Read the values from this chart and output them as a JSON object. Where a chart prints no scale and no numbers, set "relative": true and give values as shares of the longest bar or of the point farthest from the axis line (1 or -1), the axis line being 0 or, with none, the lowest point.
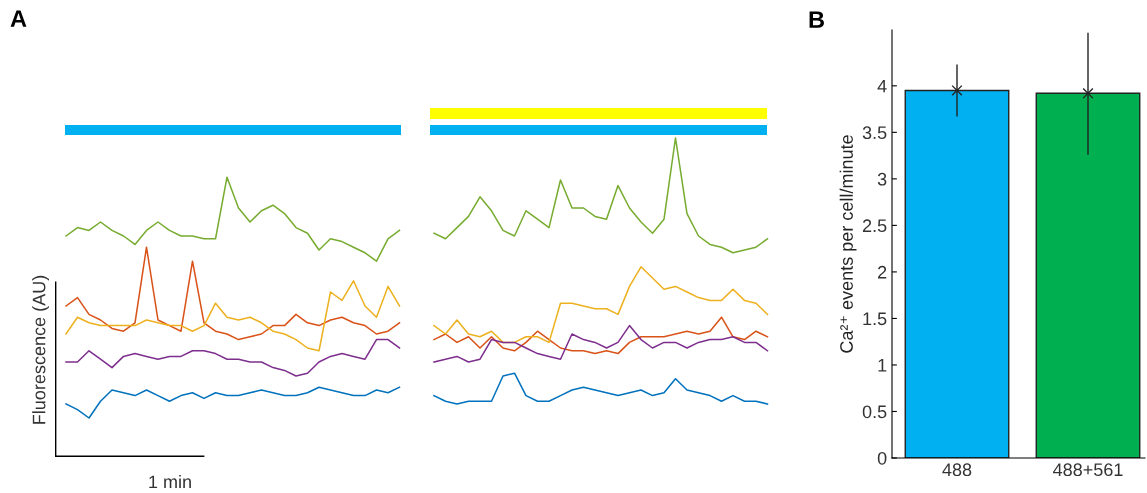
{
  "chart_data": [
    {
      "type": "line",
      "title": "A",
      "xlabel": "1 min",
      "ylabel": "Fluorescence (AU)",
      "relative": true,
      "grid": false,
      "legend": false,
      "line_style": "solid",
      "marker": "none",
      "categories": [
        null,
        null,
        null,
        null,
        null,
        null,
        null,
        null,
        null,
        null,
        null,
        null,
        null,
        null,
        null,
        null,
        null,
        null,
        null,
        null,
        null,
        null,
        null,
        null,
        null,
        null,
        null,
        null,
        null,
        null,
        null,
        null,
        null,
        null,
        null,
        null,
        null,
        null,
        null,
        null,
        null,
        null,
        null,
        null,
        null,
        null,
        null,
        null,
        null,
        null,
        null,
        null,
        null,
        null,
        null,
        null,
        null,
        null,
        null,
        null,
        null,
        null
      ],
      "series": [
        {
          "color": "#77ac30",
          "values": [
            0.65,
            0.68,
            0.67,
            0.7,
            0.67,
            0.65,
            0.62,
            0.67,
            0.7,
            0.67,
            0.65,
            0.65,
            0.64,
            0.64,
            0.86,
            0.75,
            0.7,
            0.74,
            0.76,
            0.73,
            0.68,
            0.66,
            0.6,
            0.64,
            0.63,
            0.61,
            0.59,
            0.56,
            0.64,
            0.67,
            null,
            null,
            null,
            null,
            null,
            null,
            null,
            null,
            null,
            null,
            null,
            null,
            null,
            null,
            null,
            null,
            null,
            null,
            null,
            null,
            null,
            null,
            null,
            null,
            null,
            null,
            null,
            null,
            null,
            null,
            null,
            null
          ]
        },
        {
          "color": "#d95319",
          "values": [
            0.4,
            0.43,
            0.37,
            0.35,
            0.32,
            0.31,
            0.34,
            0.61,
            0.35,
            0.33,
            0.31,
            0.56,
            0.34,
            0.31,
            0.3,
            0.28,
            0.29,
            0.3,
            0.33,
            0.33,
            0.37,
            0.34,
            0.33,
            0.35,
            0.36,
            0.34,
            0.33,
            0.3,
            0.31,
            0.34,
            null,
            null,
            null,
            null,
            null,
            null,
            null,
            null,
            null,
            null,
            null,
            null,
            null,
            null,
            null,
            null,
            null,
            null,
            null,
            null,
            null,
            null,
            null,
            null,
            null,
            null,
            null,
            null,
            null,
            null,
            null,
            null
          ]
        },
        {
          "color": "#edb120",
          "values": [
            0.3,
            0.36,
            0.34,
            0.33,
            0.33,
            0.33,
            0.33,
            0.35,
            0.34,
            0.33,
            0.33,
            0.31,
            0.33,
            0.41,
            0.36,
            0.35,
            0.36,
            0.34,
            0.31,
            0.3,
            0.28,
            0.25,
            0.24,
            0.45,
            0.42,
            0.49,
            0.4,
            0.36,
            0.47,
            0.4,
            null,
            null,
            null,
            null,
            null,
            null,
            null,
            null,
            null,
            null,
            null,
            null,
            null,
            null,
            null,
            null,
            null,
            null,
            null,
            null,
            null,
            null,
            null,
            null,
            null,
            null,
            null,
            null,
            null,
            null,
            null,
            null
          ]
        },
        {
          "color": "#7e2f8e",
          "values": [
            0.2,
            0.2,
            0.24,
            0.21,
            0.18,
            0.22,
            0.23,
            0.22,
            0.21,
            0.22,
            0.22,
            0.24,
            0.24,
            0.23,
            0.21,
            0.21,
            0.2,
            0.2,
            0.18,
            0.17,
            0.15,
            0.16,
            0.2,
            0.22,
            0.23,
            0.22,
            0.21,
            0.28,
            0.28,
            0.25,
            null,
            null,
            null,
            null,
            null,
            null,
            null,
            null,
            null,
            null,
            null,
            null,
            null,
            null,
            null,
            null,
            null,
            null,
            null,
            null,
            null,
            null,
            null,
            null,
            null,
            null,
            null,
            null,
            null,
            null,
            null,
            null
          ]
        },
        {
          "color": "#0072bd",
          "values": [
            0.05,
            0.03,
            0.0,
            0.06,
            0.1,
            0.09,
            0.08,
            0.1,
            0.08,
            0.06,
            0.08,
            0.09,
            0.07,
            0.09,
            0.08,
            0.08,
            0.09,
            0.1,
            0.09,
            0.08,
            0.08,
            0.09,
            0.11,
            0.1,
            0.09,
            0.08,
            0.08,
            0.1,
            0.09,
            0.11,
            null,
            null,
            null,
            null,
            null,
            null,
            null,
            null,
            null,
            null,
            null,
            null,
            null,
            null,
            null,
            null,
            null,
            null,
            null,
            null,
            null,
            null,
            null,
            null,
            null,
            null,
            null,
            null,
            null,
            null,
            null,
            null
          ]
        },
        {
          "color": "#77ac30",
          "values": [
            null,
            null,
            null,
            null,
            null,
            null,
            null,
            null,
            null,
            null,
            null,
            null,
            null,
            null,
            null,
            null,
            null,
            null,
            null,
            null,
            null,
            null,
            null,
            null,
            null,
            null,
            null,
            null,
            null,
            null,
            null,
            null,
            0.66,
            0.64,
            0.68,
            0.72,
            0.79,
            0.74,
            0.67,
            0.65,
            0.74,
            0.71,
            0.68,
            0.85,
            0.75,
            0.75,
            0.72,
            0.71,
            0.83,
            0.75,
            0.7,
            0.66,
            0.71,
            1.0,
            0.73,
            0.65,
            0.62,
            0.61,
            0.59,
            0.6,
            0.61,
            0.64
          ]
        },
        {
          "color": "#d95319",
          "values": [
            null,
            null,
            null,
            null,
            null,
            null,
            null,
            null,
            null,
            null,
            null,
            null,
            null,
            null,
            null,
            null,
            null,
            null,
            null,
            null,
            null,
            null,
            null,
            null,
            null,
            null,
            null,
            null,
            null,
            null,
            null,
            null,
            0.28,
            0.3,
            0.27,
            0.29,
            0.25,
            0.29,
            0.25,
            0.24,
            0.27,
            0.31,
            0.28,
            0.25,
            0.24,
            0.24,
            0.23,
            0.24,
            0.23,
            0.27,
            0.29,
            0.29,
            0.29,
            0.3,
            0.31,
            0.3,
            0.31,
            0.36,
            0.29,
            0.28,
            0.31,
            0.29
          ]
        },
        {
          "color": "#edb120",
          "values": [
            null,
            null,
            null,
            null,
            null,
            null,
            null,
            null,
            null,
            null,
            null,
            null,
            null,
            null,
            null,
            null,
            null,
            null,
            null,
            null,
            null,
            null,
            null,
            null,
            null,
            null,
            null,
            null,
            null,
            null,
            null,
            null,
            0.33,
            0.3,
            0.35,
            0.3,
            0.29,
            0.31,
            0.27,
            0.27,
            0.29,
            0.29,
            0.27,
            0.41,
            0.41,
            0.4,
            0.39,
            0.39,
            0.37,
            0.47,
            0.54,
            0.5,
            0.46,
            0.47,
            0.45,
            0.43,
            0.42,
            0.42,
            0.46,
            0.42,
            0.41,
            0.37
          ]
        },
        {
          "color": "#7e2f8e",
          "values": [
            null,
            null,
            null,
            null,
            null,
            null,
            null,
            null,
            null,
            null,
            null,
            null,
            null,
            null,
            null,
            null,
            null,
            null,
            null,
            null,
            null,
            null,
            null,
            null,
            null,
            null,
            null,
            null,
            null,
            null,
            null,
            null,
            0.2,
            0.21,
            0.22,
            0.2,
            0.21,
            0.28,
            0.27,
            0.27,
            0.25,
            0.23,
            0.22,
            0.21,
            0.3,
            0.28,
            0.27,
            0.25,
            0.27,
            0.33,
            0.28,
            0.25,
            0.27,
            0.27,
            0.25,
            0.27,
            0.28,
            0.28,
            0.29,
            0.27,
            0.27,
            0.24
          ]
        },
        {
          "color": "#0072bd",
          "values": [
            null,
            null,
            null,
            null,
            null,
            null,
            null,
            null,
            null,
            null,
            null,
            null,
            null,
            null,
            null,
            null,
            null,
            null,
            null,
            null,
            null,
            null,
            null,
            null,
            null,
            null,
            null,
            null,
            null,
            null,
            null,
            null,
            0.08,
            0.06,
            0.05,
            0.06,
            0.06,
            0.06,
            0.15,
            0.16,
            0.08,
            0.06,
            0.06,
            0.08,
            0.1,
            0.11,
            0.1,
            0.09,
            0.08,
            0.09,
            0.1,
            0.08,
            0.09,
            0.14,
            0.1,
            0.09,
            0.08,
            0.06,
            0.08,
            0.06,
            0.06,
            0.05
          ]
        }
      ]
    },
    {
      "type": "bar",
      "title": "B",
      "ylabel": "Ca²⁺ events per cell/minute",
      "categories": [
        "488",
        "488+561"
      ],
      "marker": "cross",
      "ylim": [
        0,
        4.6
      ],
      "yticks": [
        0,
        0.5,
        1,
        1.5,
        2,
        2.5,
        3,
        3.5,
        4
      ],
      "grid": false,
      "legend": false,
      "series": [
        {
          "type": "bar",
          "values": [
            3.95,
            3.92
          ],
          "colors": [
            "#00b0f0",
            "#00b050"
          ]
        },
        {
          "type": "scatter",
          "x": [
            "488",
            "488+561"
          ],
          "values": [
            3.95,
            3.92
          ],
          "color": "#222222",
          "errors": [
            [
              3.67,
              4.23
            ],
            [
              3.26,
              4.57
            ]
          ]
        }
      ]
    }
  ]
}
